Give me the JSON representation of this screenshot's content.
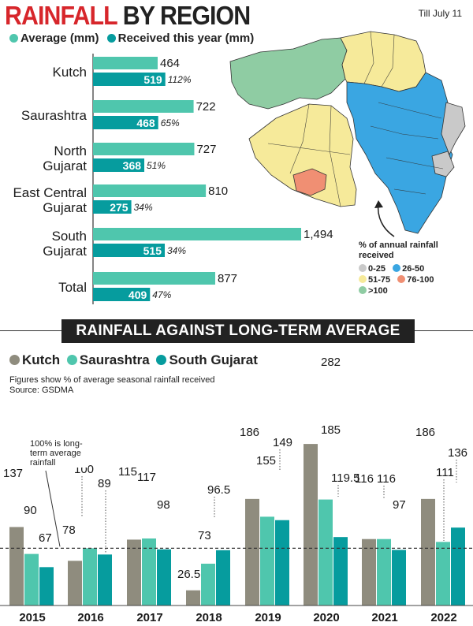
{
  "header": {
    "title_part1": "RAINFALL",
    "title_part2": "BY REGION",
    "date": "Till July 11"
  },
  "colors": {
    "average": "#4fc6ad",
    "received": "#069c9e",
    "kutch": "#8f8c7e",
    "saurashtra": "#4fc6ad",
    "south_gujarat": "#069c9e",
    "map_0_25": "#c9c9c9",
    "map_26_50": "#3aa6e2",
    "map_51_75": "#f6ea9a",
    "map_76_100": "#f08f73",
    "map_over_100": "#8fcca3"
  },
  "map": {
    "legend_title": "% of annual rainfall received",
    "legend_items": [
      "0-25",
      "26-50",
      "51-75",
      "76-100",
      ">100"
    ]
  },
  "second_section": {
    "banner": "RAINFALL AGAINST LONG-TERM AVERAGE",
    "note_line1": "Figures show % of average seasonal rainfall received",
    "note_line2": "Source: GSDMA",
    "annotation": "100% is long-term average rainfall"
  },
  "chart_data": [
    {
      "type": "bar",
      "orientation": "horizontal",
      "title": "",
      "categories": [
        "Kutch",
        "Saurashtra",
        "North Gujarat",
        "East Central Gujarat",
        "South Gujarat",
        "Total"
      ],
      "series": [
        {
          "name": "Average (mm)",
          "values": [
            464,
            722,
            727,
            810,
            1494,
            877
          ],
          "labels": [
            "464",
            "722",
            "727",
            "810",
            "1,494",
            "877"
          ]
        },
        {
          "name": "Received this year (mm)",
          "values": [
            519,
            468,
            368,
            275,
            515,
            409
          ],
          "labels": [
            "519",
            "468",
            "368",
            "275",
            "515",
            "409"
          ]
        }
      ],
      "percent_labels": [
        "112%",
        "65%",
        "51%",
        "34%",
        "34%",
        "47%"
      ]
    },
    {
      "type": "bar",
      "title": "",
      "categories": [
        "2015",
        "2016",
        "2017",
        "2018",
        "2019",
        "2020",
        "2021",
        "2022"
      ],
      "series": [
        {
          "name": "Kutch",
          "values": [
            137,
            78,
            115,
            26.5,
            186,
            282,
            116,
            186
          ]
        },
        {
          "name": "Saurashtra",
          "values": [
            90,
            100,
            117,
            73,
            155,
            185,
            116,
            111
          ]
        },
        {
          "name": "South Gujarat",
          "values": [
            67,
            89,
            98,
            96.5,
            149,
            119.5,
            97,
            136
          ]
        }
      ],
      "reference_line": 100
    }
  ]
}
